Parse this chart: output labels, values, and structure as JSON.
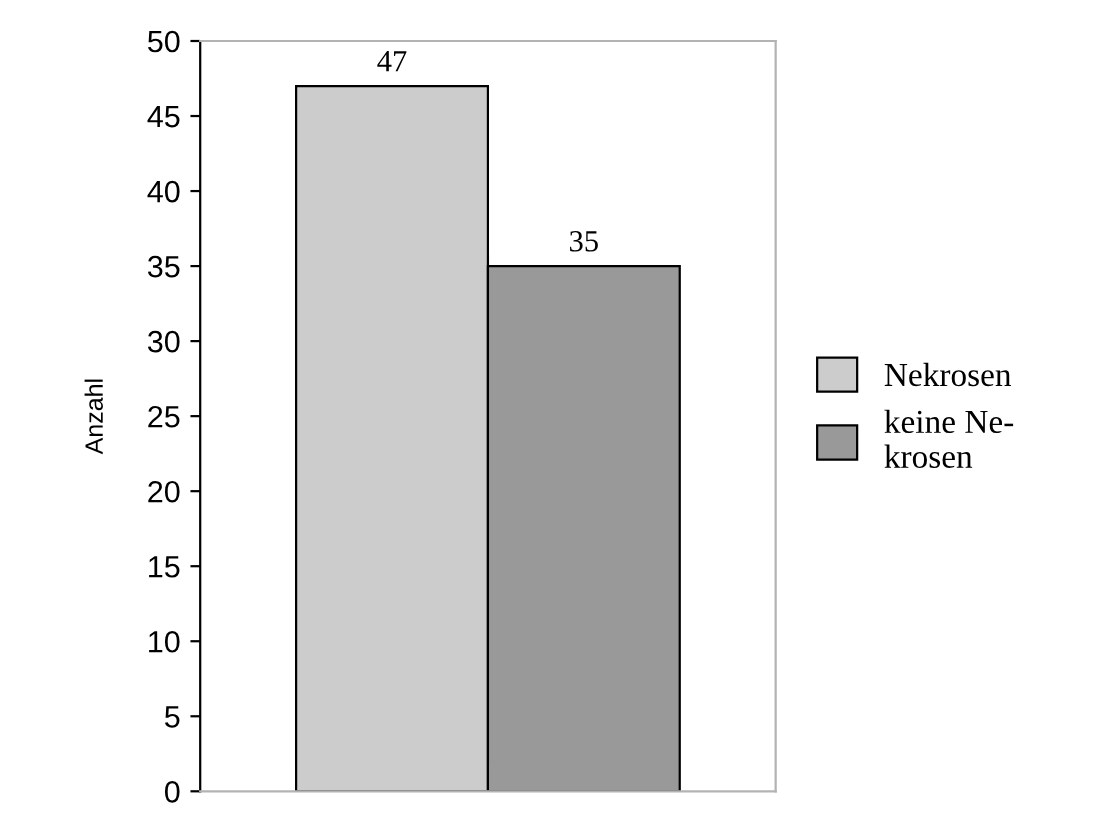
{
  "chart_data": {
    "type": "bar",
    "ylabel": "Anzahl",
    "categories": [
      null
    ],
    "series": [
      {
        "name": "Nekrosen",
        "color": "#cccccc",
        "values": [
          47
        ]
      },
      {
        "name": "keine Ne-\nkrosen",
        "color": "#999999",
        "values": [
          35
        ]
      }
    ],
    "ylim": [
      0,
      50
    ],
    "yticks": [
      0,
      5,
      10,
      15,
      20,
      25,
      30,
      35,
      40,
      45,
      50
    ],
    "data_labels": true,
    "legend": "right",
    "grid": false
  }
}
